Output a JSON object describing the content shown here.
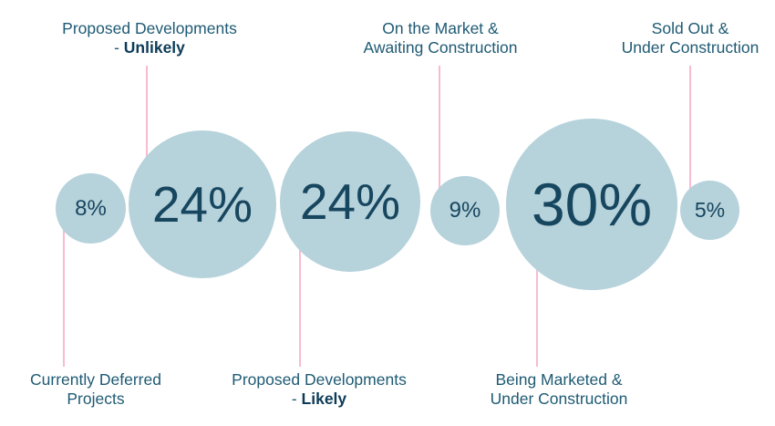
{
  "chart_data": {
    "type": "bubble",
    "unit": "%",
    "legend_position": "none",
    "grid": false,
    "items": [
      {
        "label": "Currently Deferred Projects",
        "value": 8,
        "display": "8%",
        "bubble_radius_px": 38,
        "callout_position": "bottom"
      },
      {
        "label": "Proposed Developments - Unlikely",
        "value": 24,
        "display": "24%",
        "bubble_radius_px": 81,
        "callout_position": "top"
      },
      {
        "label": "Proposed Developments - Likely",
        "value": 24,
        "display": "24%",
        "bubble_radius_px": 77,
        "callout_position": "bottom"
      },
      {
        "label": "On the Market & Awaiting Construction",
        "value": 9,
        "display": "9%",
        "bubble_radius_px": 38,
        "callout_position": "top"
      },
      {
        "label": "Being Marketed & Under Construction",
        "value": 30,
        "display": "30%",
        "bubble_radius_px": 94,
        "callout_position": "bottom"
      },
      {
        "label": "Sold Out & Under Construction",
        "value": 5,
        "display": "5%",
        "bubble_radius_px": 33,
        "callout_position": "top"
      }
    ]
  },
  "bubbles": {
    "deferred": {
      "display": "8%"
    },
    "proposed_unlikely": {
      "display": "24%"
    },
    "proposed_likely": {
      "display": "24%"
    },
    "on_market": {
      "display": "9%"
    },
    "marketed": {
      "display": "30%"
    },
    "sold_out": {
      "display": "5%"
    }
  },
  "labels": {
    "top_unlikely": {
      "line1": "Proposed Developments",
      "line2_prefix": "- ",
      "line2_bold": "Unlikely"
    },
    "top_on_market": {
      "line1": "On the Market &",
      "line2": "Awaiting Construction"
    },
    "top_sold_out": {
      "line1": "Sold Out &",
      "line2": "Under Construction"
    },
    "bottom_deferred": {
      "line1": "Currently Deferred",
      "line2": "Projects"
    },
    "bottom_likely": {
      "line1": "Proposed Developments",
      "line2_prefix": "- ",
      "line2_bold": "Likely"
    },
    "bottom_marketed": {
      "line1": "Being Marketed &",
      "line2": "Under Construction"
    }
  },
  "colors": {
    "background": "#ffffff",
    "bubble_fill": "#b6d2db",
    "number_text": "#17465f",
    "label_text": "#1e5a73",
    "label_bold_text": "#0e3c58",
    "connector_line": "#f8bbd1"
  }
}
